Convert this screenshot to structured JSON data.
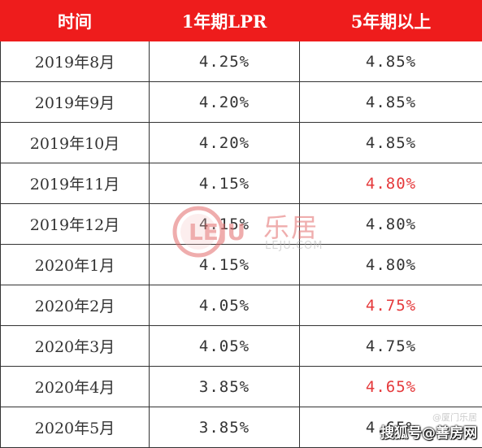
{
  "table": {
    "headers": [
      "时间",
      "1年期LPR",
      "5年期以上"
    ],
    "rows": [
      {
        "time": "2019年8月",
        "lpr1y": "4.25%",
        "lpr5y": "4.85%",
        "lpr5y_highlight": false
      },
      {
        "time": "2019年9月",
        "lpr1y": "4.20%",
        "lpr5y": "4.85%",
        "lpr5y_highlight": false
      },
      {
        "time": "2019年10月",
        "lpr1y": "4.20%",
        "lpr5y": "4.85%",
        "lpr5y_highlight": false
      },
      {
        "time": "2019年11月",
        "lpr1y": "4.15%",
        "lpr5y": "4.80%",
        "lpr5y_highlight": true
      },
      {
        "time": "2019年12月",
        "lpr1y": "4.15%",
        "lpr5y": "4.80%",
        "lpr5y_highlight": false
      },
      {
        "time": "2020年1月",
        "lpr1y": "4.15%",
        "lpr5y": "4.80%",
        "lpr5y_highlight": false
      },
      {
        "time": "2020年2月",
        "lpr1y": "4.05%",
        "lpr5y": "4.75%",
        "lpr5y_highlight": true
      },
      {
        "time": "2020年3月",
        "lpr1y": "4.05%",
        "lpr5y": "4.75%",
        "lpr5y_highlight": false
      },
      {
        "time": "2020年4月",
        "lpr1y": "3.85%",
        "lpr5y": "4.65%",
        "lpr5y_highlight": true
      },
      {
        "time": "2020年5月",
        "lpr1y": "3.85%",
        "lpr5y": "4.65%",
        "lpr5y_highlight": false
      }
    ]
  },
  "colors": {
    "header_bg": "#ee1c1c",
    "header_text": "#ffffff",
    "highlight_text": "#e5393b",
    "cell_text": "#333333"
  },
  "watermark": {
    "logo_text": "LEJU",
    "brand": "乐居",
    "domain": "LEJU.COM"
  },
  "source_caption": {
    "main": "搜狐号@善房网",
    "small": "@厦门乐居"
  }
}
